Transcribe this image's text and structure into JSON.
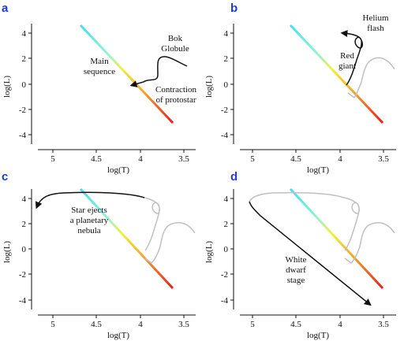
{
  "chart_data": [
    {
      "type": "diagram",
      "panel_label": "b",
      "xlabel": "log(T)",
      "ylabel": "log(L)",
      "xticks": [
        "5",
        "4.5",
        "4",
        "3.5"
      ],
      "yticks": [
        "4",
        "2",
        "0",
        "-2",
        "-4"
      ],
      "annotations": [
        "Helium",
        "flash",
        "Red",
        "giant"
      ]
    },
    {
      "type": "diagram",
      "panel_label": "a",
      "xlabel": "log(T)",
      "ylabel": "log(L)",
      "xticks": [
        "5",
        "4.5",
        "4",
        "3.5"
      ],
      "yticks": [
        "4",
        "2",
        "0",
        "-2",
        "-4"
      ],
      "annotations": [
        "Bok",
        "Globule",
        "Main",
        "sequence",
        "Contraction",
        "of protostar"
      ]
    },
    {
      "type": "diagram",
      "panel_label": "c",
      "xlabel": "log(T)",
      "ylabel": "log(L)",
      "xticks": [
        "5",
        "4.5",
        "4",
        "3.5"
      ],
      "yticks": [
        "4",
        "2",
        "0",
        "-2",
        "-4"
      ],
      "annotations": [
        "Star ejects",
        "a planetary",
        "nebula"
      ]
    },
    {
      "type": "diagram",
      "panel_label": "d",
      "xlabel": "log(T)",
      "ylabel": "log(L)",
      "xticks": [
        "5",
        "4.5",
        "4",
        "3.5"
      ],
      "yticks": [
        "4",
        "2",
        "0",
        "-2",
        "-4"
      ],
      "annotations": [
        "White",
        "dwarf",
        "stage"
      ]
    }
  ],
  "colors": {
    "main_sequence_gradient": [
      "#40e0f0",
      "#f0f040",
      "#f09030",
      "#e02020"
    ],
    "track_active": "#111111",
    "track_past": "#c0c0c0",
    "panel_label": "#1f3fbf"
  }
}
